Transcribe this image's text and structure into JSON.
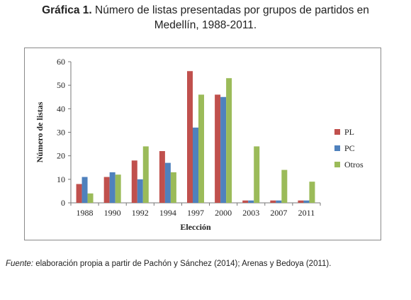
{
  "caption": {
    "label": "Gráfica 1.",
    "text": " Número de listas presentadas por grupos de partidos en",
    "line2": "Medellín, 1988-2011."
  },
  "source": {
    "label": "Fuente:",
    "text": " elaboración propia a partir de Pachón y Sánchez (2014); Arenas y Bedoya (2011)."
  },
  "chart_data": {
    "type": "bar",
    "xlabel": "Elección",
    "ylabel": "Número de listas",
    "ylim": [
      0,
      60
    ],
    "yticks": [
      0,
      10,
      20,
      30,
      40,
      50,
      60
    ],
    "grid": false,
    "legend_position": "right",
    "categories": [
      "1988",
      "1990",
      "1992",
      "1994",
      "1997",
      "2000",
      "2003",
      "2007",
      "2011"
    ],
    "series": [
      {
        "name": "PL",
        "color": "#c0504d",
        "values": [
          8,
          11,
          18,
          22,
          56,
          46,
          1,
          1,
          1
        ]
      },
      {
        "name": "PC",
        "color": "#4f81bd",
        "values": [
          11,
          13,
          10,
          17,
          32,
          45,
          1,
          1,
          1
        ]
      },
      {
        "name": "Otros",
        "color": "#9bbb59",
        "values": [
          4,
          12,
          24,
          13,
          46,
          53,
          24,
          14,
          9
        ]
      }
    ]
  }
}
